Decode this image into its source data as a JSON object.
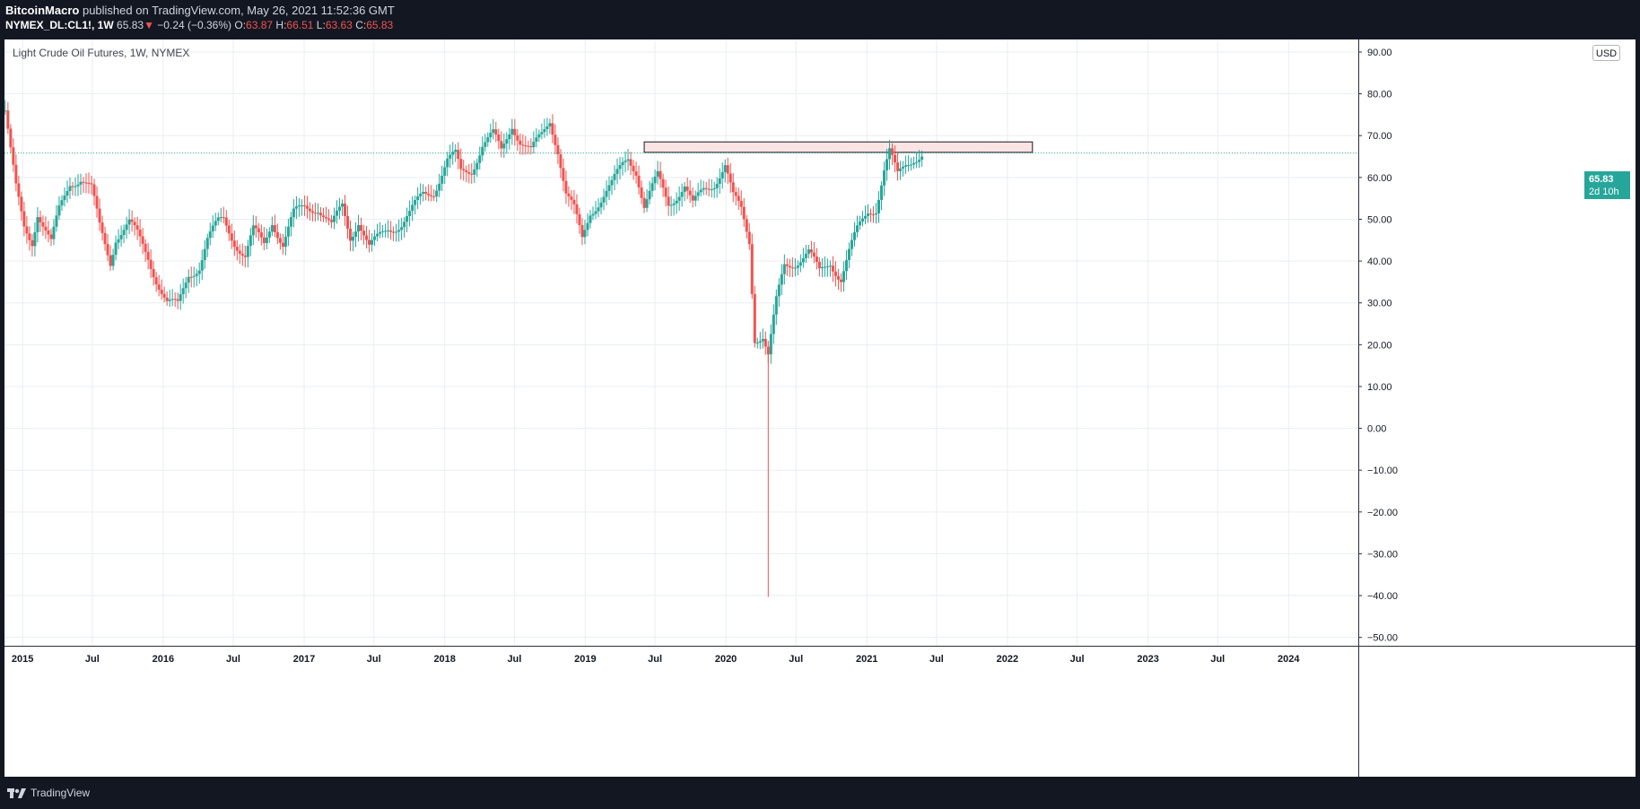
{
  "header": {
    "author": "BitcoinMacro",
    "published_text": "published on TradingView.com, May 26, 2021 11:52:36 GMT",
    "symbol": "NYMEX_DL:CL1!, 1W",
    "last": "65.83",
    "change_arrow": "▼",
    "change": "−0.24 (−0.36%)",
    "open_label": "O:",
    "open": "63.87",
    "high_label": "H:",
    "high": "66.51",
    "low_label": "L:",
    "low": "63.63",
    "close_label": "C:",
    "close": "65.83"
  },
  "chart_title": "Light Crude Oil Futures, 1W, NYMEX",
  "currency": "USD",
  "price_tag": {
    "value": "65.83",
    "countdown": "2d 10h"
  },
  "footer": {
    "brand": "TradingView"
  },
  "colors": {
    "up": "#26a69a",
    "down": "#ef5350",
    "grid": "#e9eef3",
    "box_fill": "#fde4e4",
    "background": "#131722"
  },
  "chart_data": {
    "type": "candlestick",
    "title": "Light Crude Oil Futures, 1W, NYMEX",
    "interval": "1W",
    "ylim": [
      -52,
      93
    ],
    "y_ticks": [
      90,
      80,
      70,
      60,
      50,
      40,
      30,
      20,
      10,
      0,
      -10,
      -20,
      -30,
      -40,
      -50
    ],
    "y_tick_labels": [
      "90.00",
      "80.00",
      "70.00",
      "60.00",
      "50.00",
      "40.00",
      "30.00",
      "20.00",
      "10.00",
      "0.00",
      "−10.00",
      "−20.00",
      "−30.00",
      "−40.00",
      "−50.00"
    ],
    "xlim": [
      "2014-11-15",
      "2024-06-30"
    ],
    "x_ticks": [
      "2015-01-01",
      "2015-07-01",
      "2016-01-01",
      "2016-07-01",
      "2017-01-01",
      "2017-07-01",
      "2018-01-01",
      "2018-07-01",
      "2019-01-01",
      "2019-07-01",
      "2020-01-01",
      "2020-07-01",
      "2021-01-01",
      "2021-07-01",
      "2022-01-01",
      "2022-07-01",
      "2023-01-01",
      "2023-07-01",
      "2024-01-01"
    ],
    "x_tick_labels": [
      "2015",
      "Jul",
      "2016",
      "Jul",
      "2017",
      "Jul",
      "2018",
      "Jul",
      "2019",
      "Jul",
      "2020",
      "Jul",
      "2021",
      "Jul",
      "2022",
      "Jul",
      "2023",
      "Jul",
      "2024"
    ],
    "grid": true,
    "last_price": 65.83,
    "approx_closes": [
      [
        "2014-11-17",
        76
      ],
      [
        "2014-12-01",
        66
      ],
      [
        "2014-12-15",
        57
      ],
      [
        "2015-01-05",
        48
      ],
      [
        "2015-01-26",
        45
      ],
      [
        "2015-02-09",
        52
      ],
      [
        "2015-03-16",
        44
      ],
      [
        "2015-04-06",
        52
      ],
      [
        "2015-05-04",
        59
      ],
      [
        "2015-06-01",
        60
      ],
      [
        "2015-06-29",
        57
      ],
      [
        "2015-07-20",
        48
      ],
      [
        "2015-08-17",
        40
      ],
      [
        "2015-08-31",
        46
      ],
      [
        "2015-10-05",
        49
      ],
      [
        "2015-10-26",
        46
      ],
      [
        "2015-11-23",
        41
      ],
      [
        "2015-12-14",
        36
      ],
      [
        "2016-01-11",
        30
      ],
      [
        "2016-02-08",
        29
      ],
      [
        "2016-03-07",
        37
      ],
      [
        "2016-04-04",
        39
      ],
      [
        "2016-04-25",
        45
      ],
      [
        "2016-05-23",
        49
      ],
      [
        "2016-06-06",
        50
      ],
      [
        "2016-07-04",
        45
      ],
      [
        "2016-08-01",
        41
      ],
      [
        "2016-08-22",
        47
      ],
      [
        "2016-09-19",
        44
      ],
      [
        "2016-10-10",
        50
      ],
      [
        "2016-11-07",
        44
      ],
      [
        "2016-12-05",
        51
      ],
      [
        "2017-01-02",
        53
      ],
      [
        "2017-02-06",
        53
      ],
      [
        "2017-03-13",
        48
      ],
      [
        "2017-04-10",
        53
      ],
      [
        "2017-05-01",
        46
      ],
      [
        "2017-05-22",
        50
      ],
      [
        "2017-06-19",
        43
      ],
      [
        "2017-07-10",
        45
      ],
      [
        "2017-08-07",
        48
      ],
      [
        "2017-09-11",
        49
      ],
      [
        "2017-10-02",
        51
      ],
      [
        "2017-11-06",
        56
      ],
      [
        "2017-12-04",
        57
      ],
      [
        "2018-01-08",
        64
      ],
      [
        "2018-01-29",
        65
      ],
      [
        "2018-02-12",
        61
      ],
      [
        "2018-03-12",
        62
      ],
      [
        "2018-04-09",
        68
      ],
      [
        "2018-05-07",
        70
      ],
      [
        "2018-05-28",
        66
      ],
      [
        "2018-06-25",
        73
      ],
      [
        "2018-07-16",
        69
      ],
      [
        "2018-08-13",
        66
      ],
      [
        "2018-09-10",
        70
      ],
      [
        "2018-10-01",
        74
      ],
      [
        "2018-10-22",
        67
      ],
      [
        "2018-11-12",
        56
      ],
      [
        "2018-12-03",
        52
      ],
      [
        "2018-12-24",
        45
      ],
      [
        "2019-01-14",
        52
      ],
      [
        "2019-02-11",
        55
      ],
      [
        "2019-03-11",
        58
      ],
      [
        "2019-04-08",
        63
      ],
      [
        "2019-04-22",
        65
      ],
      [
        "2019-05-13",
        62
      ],
      [
        "2019-06-03",
        53
      ],
      [
        "2019-07-08",
        60
      ],
      [
        "2019-08-05",
        54
      ],
      [
        "2019-09-16",
        58
      ],
      [
        "2019-10-07",
        53
      ],
      [
        "2019-11-04",
        57
      ],
      [
        "2019-12-02",
        59
      ],
      [
        "2019-12-30",
        63
      ],
      [
        "2020-01-20",
        55
      ],
      [
        "2020-02-10",
        52
      ],
      [
        "2020-03-02",
        45
      ],
      [
        "2020-03-16",
        22
      ],
      [
        "2020-04-06",
        22
      ],
      [
        "2020-04-20",
        17
      ],
      [
        "2020-05-11",
        30
      ],
      [
        "2020-06-01",
        39
      ],
      [
        "2020-06-29",
        40
      ],
      [
        "2020-08-03",
        42
      ],
      [
        "2020-08-31",
        37
      ],
      [
        "2020-09-28",
        40
      ],
      [
        "2020-10-26",
        36
      ],
      [
        "2020-11-16",
        42
      ],
      [
        "2020-12-07",
        47
      ],
      [
        "2021-01-04",
        52
      ],
      [
        "2021-01-25",
        53
      ],
      [
        "2021-02-15",
        62
      ],
      [
        "2021-03-01",
        66
      ],
      [
        "2021-03-22",
        60
      ],
      [
        "2021-04-12",
        63
      ],
      [
        "2021-05-03",
        65
      ],
      [
        "2021-05-24",
        65.83
      ]
    ],
    "annotations": [
      {
        "type": "rectangle",
        "from": "2019-06-03",
        "to": "2022-03-07",
        "y_range": [
          66,
          68.5
        ],
        "fill": "#fde4e4"
      },
      {
        "type": "horizontal_price_line",
        "y": 65.83
      }
    ]
  }
}
